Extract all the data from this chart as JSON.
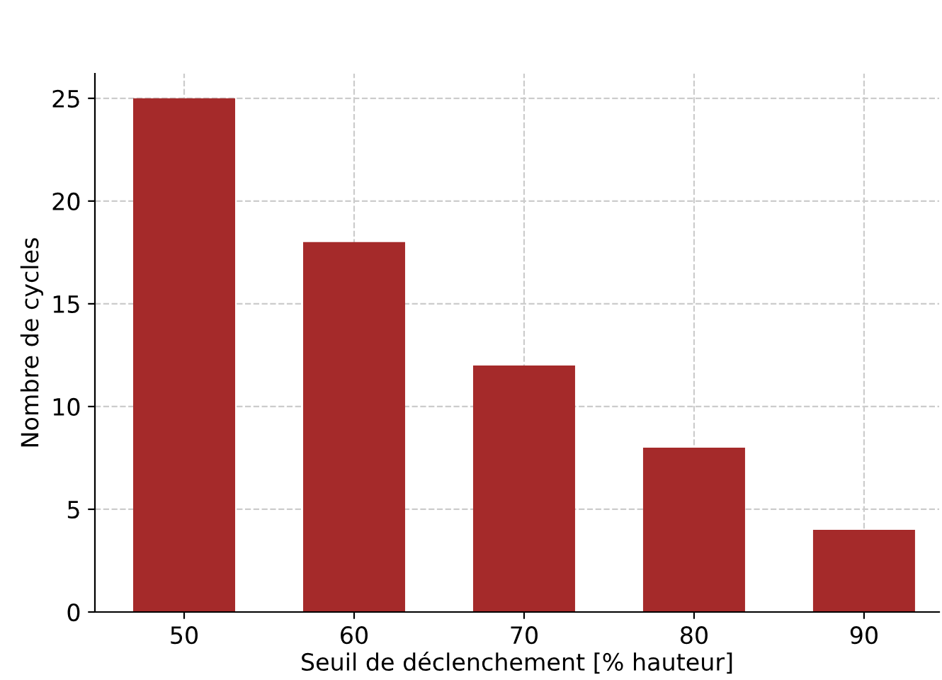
{
  "chart_data": {
    "type": "bar",
    "xlabel": "Seuil de déclenchement [% hauteur]",
    "ylabel": "Nombre de cycles",
    "categories": [
      "50",
      "60",
      "70",
      "80",
      "90"
    ],
    "values": [
      25,
      18,
      12,
      8,
      4
    ],
    "color": "#a52a2a",
    "ylim": [
      0,
      26.2
    ],
    "yticks": [
      0,
      5,
      10,
      15,
      20,
      25
    ],
    "grid": true
  }
}
